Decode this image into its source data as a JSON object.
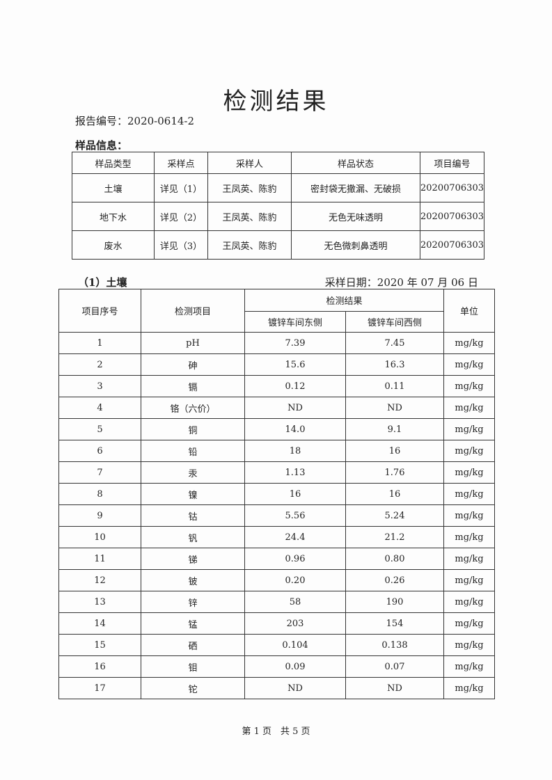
{
  "title": "检测结果",
  "report_number": "报告编号：2020-0614-2",
  "sample_info_label": "样品信息：",
  "sample_table": {
    "headers": [
      "样品类型",
      "采样点",
      "采样人",
      "样品状态",
      "项目编号"
    ],
    "rows": [
      [
        "土壤",
        "详见（1）",
        "王凤英、陈豹",
        "密封袋无撒漏、无破损",
        "20200706303"
      ],
      [
        "地下水",
        "详见（2）",
        "王凤英、陈豹",
        "无色无味透明",
        "20200706303"
      ],
      [
        "废水",
        "详见（3）",
        "王凤英、陈豹",
        "无色微刺鼻透明",
        "20200706303"
      ]
    ]
  },
  "section": {
    "title": "（1）土壤",
    "date": "采样日期：2020 年 07 月 06 日"
  },
  "results_table": {
    "headers": {
      "seq": "项目序号",
      "item": "检测项目",
      "result": "检测结果",
      "east": "镀锌车间东侧",
      "west": "镀锌车间西侧",
      "unit": "单位"
    },
    "rows": [
      [
        "1",
        "pH",
        "7.39",
        "7.45",
        "mg/kg"
      ],
      [
        "2",
        "砷",
        "15.6",
        "16.3",
        "mg/kg"
      ],
      [
        "3",
        "镉",
        "0.12",
        "0.11",
        "mg/kg"
      ],
      [
        "4",
        "铬（六价）",
        "ND",
        "ND",
        "mg/kg"
      ],
      [
        "5",
        "铜",
        "14.0",
        "9.1",
        "mg/kg"
      ],
      [
        "6",
        "铅",
        "18",
        "16",
        "mg/kg"
      ],
      [
        "7",
        "汞",
        "1.13",
        "1.76",
        "mg/kg"
      ],
      [
        "8",
        "镍",
        "16",
        "16",
        "mg/kg"
      ],
      [
        "9",
        "钴",
        "5.56",
        "5.24",
        "mg/kg"
      ],
      [
        "10",
        "钒",
        "24.4",
        "21.2",
        "mg/kg"
      ],
      [
        "11",
        "锑",
        "0.96",
        "0.80",
        "mg/kg"
      ],
      [
        "12",
        "铍",
        "0.20",
        "0.26",
        "mg/kg"
      ],
      [
        "13",
        "锌",
        "58",
        "190",
        "mg/kg"
      ],
      [
        "14",
        "锰",
        "203",
        "154",
        "mg/kg"
      ],
      [
        "15",
        "硒",
        "0.104",
        "0.138",
        "mg/kg"
      ],
      [
        "16",
        "钼",
        "0.09",
        "0.07",
        "mg/kg"
      ],
      [
        "17",
        "铊",
        "ND",
        "ND",
        "mg/kg"
      ]
    ]
  },
  "footer": "第 1 页　共 5 页"
}
